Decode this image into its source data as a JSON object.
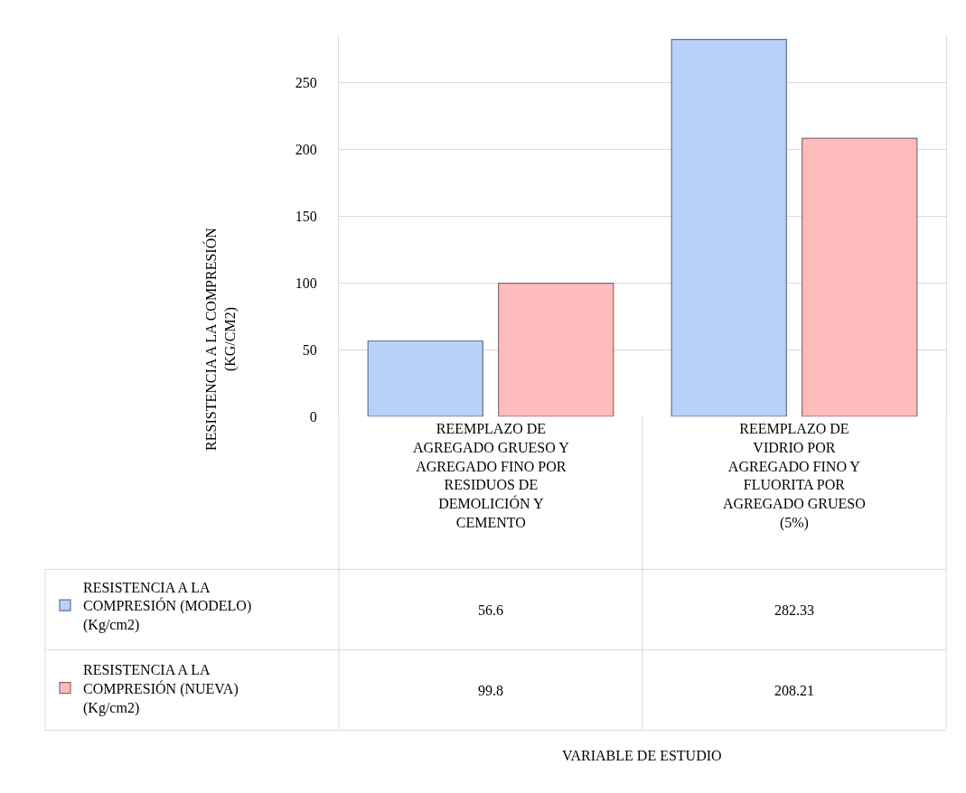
{
  "chart_data": {
    "type": "bar",
    "categories": [
      "REEMPLAZO DE AGREGADO GRUESO Y AGREGADO FINO POR RESIDUOS DE DEMOLICIÓN Y CEMENTO",
      "REEMPLAZO DE VIDRIO POR AGREGADO FINO Y FLUORITA POR AGREGADO GRUESO (5%)"
    ],
    "series": [
      {
        "name": "RESISTENCIA A LA COMPRESIÓN (MODELO) (Kg/cm2)",
        "color": "#b9d0f8",
        "values": [
          56.6,
          282.33
        ]
      },
      {
        "name": "RESISTENCIA A LA COMPRESIÓN (NUEVA) (Kg/cm2)",
        "color": "#ffbcbc",
        "values": [
          99.8,
          208.21
        ]
      }
    ],
    "ylabel": "RESISTENCIA A LA COMPRESIÓN (KG/CM2)",
    "annotations": [
      "VARIABLE DE ESTUDIO"
    ],
    "legend": "bottom left",
    "ylim": [
      0,
      285
    ],
    "yticks": [
      0,
      50,
      100,
      150,
      200,
      250
    ],
    "grid": "y",
    "data_labels": true
  }
}
